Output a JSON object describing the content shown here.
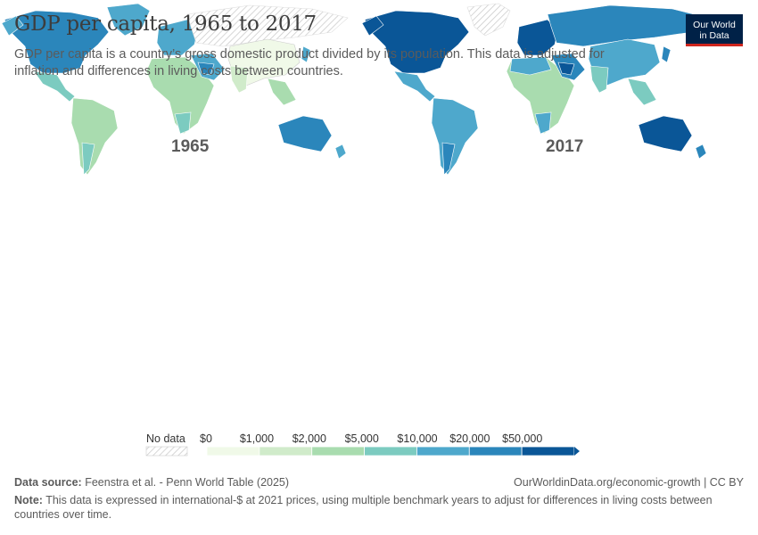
{
  "header": {
    "title": "GDP per capita, 1965 to 2017",
    "subtitle": "GDP per capita is a country’s gross domestic product divided by its population. This data is adjusted for inflation and differences in living costs between countries."
  },
  "logo": {
    "line1": "Our World",
    "line2": "in Data"
  },
  "maps": [
    {
      "label": "1965",
      "accent": "#4ea8cc"
    },
    {
      "label": "2017",
      "accent": "#1a64a0"
    }
  ],
  "legend": {
    "no_data_label": "No data",
    "bins": [
      "$0",
      "$1,000",
      "$2,000",
      "$5,000",
      "$10,000",
      "$20,000",
      "$50,000"
    ],
    "colors": [
      "#f0f9e8",
      "#d0ebca",
      "#a9dcaf",
      "#7ccbc0",
      "#4ea8cc",
      "#2b86bb",
      "#0a5697"
    ]
  },
  "footer": {
    "source_label": "Data source:",
    "source_text": "Feenstra et al. - Penn World Table (2025)",
    "url": "OurWorldinData.org/economic-growth | CC BY",
    "note_label": "Note:",
    "note_text": "This data is expressed in international-$ at 2021 prices, using multiple benchmark years to adjust for differences in living costs between countries over time."
  }
}
